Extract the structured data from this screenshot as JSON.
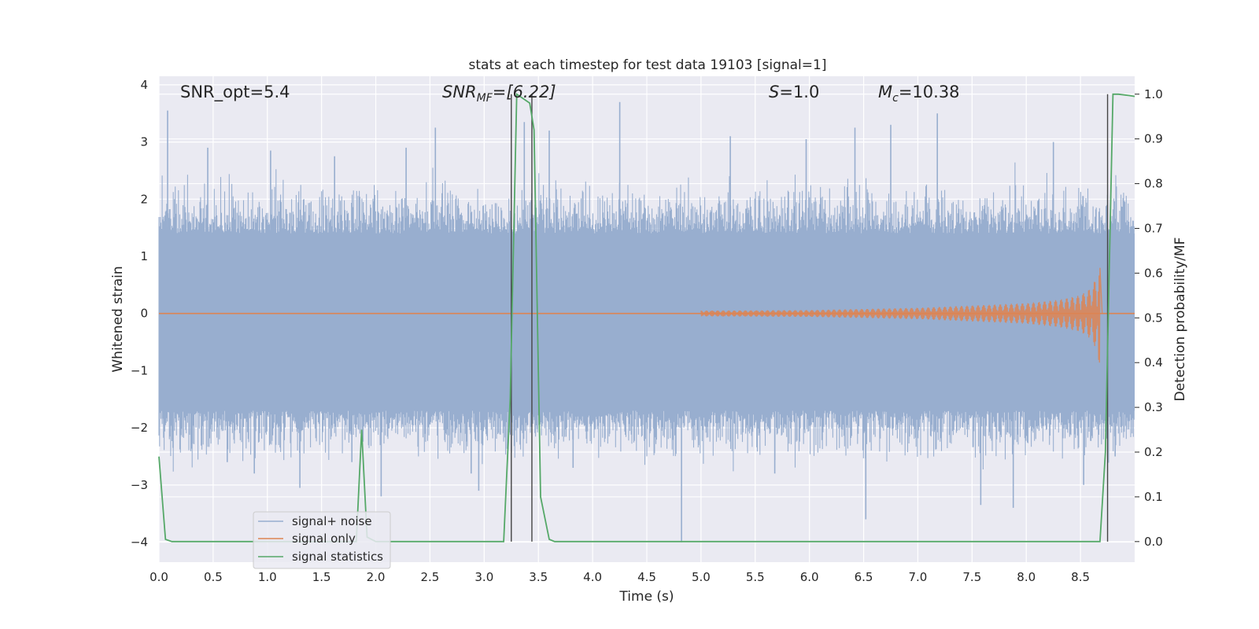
{
  "chart_data": {
    "type": "line",
    "title": "stats at each timestep for test data 19103 [signal=1]",
    "xlabel": "Time (s)",
    "ylabel": "Whitened strain",
    "y2label": "Detection probability/MF",
    "xlim": [
      0.0,
      9.0
    ],
    "ylim": [
      -4.35,
      4.15
    ],
    "y2lim": [
      -0.046,
      1.04
    ],
    "xticks": [
      0.0,
      0.5,
      1.0,
      1.5,
      2.0,
      2.5,
      3.0,
      3.5,
      4.0,
      4.5,
      5.0,
      5.5,
      6.0,
      6.5,
      7.0,
      7.5,
      8.0,
      8.5
    ],
    "xtick_labels": [
      "0.0",
      "0.5",
      "1.0",
      "1.5",
      "2.0",
      "2.5",
      "3.0",
      "3.5",
      "4.0",
      "4.5",
      "5.0",
      "5.5",
      "6.0",
      "6.5",
      "7.0",
      "7.5",
      "8.0",
      "8.5"
    ],
    "yticks": [
      4,
      3,
      2,
      1,
      0,
      -1,
      -2,
      -3,
      -4
    ],
    "ytick_labels": [
      "4",
      "3",
      "2",
      "1",
      "0",
      "−1",
      "−2",
      "−3",
      "−4"
    ],
    "y2ticks": [
      1.0,
      0.9,
      0.8,
      0.7,
      0.6,
      0.5,
      0.4,
      0.3,
      0.2,
      0.1,
      0.0
    ],
    "y2tick_labels": [
      "1.0",
      "0.9",
      "0.8",
      "0.7",
      "0.6",
      "0.5",
      "0.4",
      "0.3",
      "0.2",
      "0.1",
      "0.0"
    ],
    "grid": true,
    "legend_position": "lower-left",
    "annotations": {
      "snr_opt": "SNR_opt=5.4",
      "snr_mf_main": "SNR",
      "snr_mf_sub": "MF",
      "snr_mf_value": "=[6.22]",
      "s_symbol": "S",
      "s_value": "=1.0",
      "mc_main": "M",
      "mc_sub": "c",
      "mc_value": "=10.38"
    },
    "series": [
      {
        "name": "signal+ noise",
        "color": "#98aecf",
        "kind": "noise-band",
        "typical_range": [
          -1.7,
          1.4
        ],
        "extreme_peaks": [
          {
            "x": 0.08,
            "y": 3.55
          },
          {
            "x": 0.13,
            "y": -2.35
          },
          {
            "x": 0.45,
            "y": 2.9
          },
          {
            "x": 0.63,
            "y": -2.6
          },
          {
            "x": 0.88,
            "y": -2.8
          },
          {
            "x": 1.03,
            "y": 2.85
          },
          {
            "x": 1.3,
            "y": -3.05
          },
          {
            "x": 1.62,
            "y": 2.75
          },
          {
            "x": 1.78,
            "y": -2.6
          },
          {
            "x": 2.05,
            "y": -3.2
          },
          {
            "x": 2.28,
            "y": 2.9
          },
          {
            "x": 2.55,
            "y": 3.25
          },
          {
            "x": 2.88,
            "y": -2.8
          },
          {
            "x": 2.95,
            "y": -3.1
          },
          {
            "x": 3.37,
            "y": 3.35
          },
          {
            "x": 3.6,
            "y": 3.2
          },
          {
            "x": 3.82,
            "y": -2.7
          },
          {
            "x": 4.25,
            "y": 3.7
          },
          {
            "x": 4.82,
            "y": -4.0
          },
          {
            "x": 5.27,
            "y": 3.1
          },
          {
            "x": 5.68,
            "y": -2.8
          },
          {
            "x": 5.97,
            "y": 3.05
          },
          {
            "x": 6.42,
            "y": 3.25
          },
          {
            "x": 6.52,
            "y": -3.6
          },
          {
            "x": 6.75,
            "y": 3.3
          },
          {
            "x": 7.18,
            "y": 3.5
          },
          {
            "x": 7.58,
            "y": -3.35
          },
          {
            "x": 7.88,
            "y": -3.4
          },
          {
            "x": 8.25,
            "y": 3.0
          },
          {
            "x": 8.53,
            "y": -3.0
          },
          {
            "x": 8.82,
            "y": -2.5
          }
        ]
      },
      {
        "name": "signal only",
        "color": "#dd8452",
        "kind": "chirp",
        "start_x": 5.0,
        "merger_x": 8.68,
        "envelope_x": [
          5.0,
          6.0,
          7.0,
          7.5,
          8.0,
          8.3,
          8.5,
          8.6,
          8.65,
          8.68
        ],
        "envelope_y": [
          0.05,
          0.06,
          0.1,
          0.14,
          0.18,
          0.24,
          0.32,
          0.45,
          0.65,
          0.8
        ],
        "min_near_merger": -0.9
      },
      {
        "name": "signal statistics",
        "color": "#55a868",
        "axis": "right",
        "x": [
          0.0,
          0.06,
          0.12,
          1.82,
          1.87,
          1.92,
          2.0,
          2.07,
          3.18,
          3.24,
          3.3,
          3.42,
          3.46,
          3.52,
          3.6,
          3.65,
          8.68,
          8.73,
          8.8,
          8.85,
          8.95,
          9.0
        ],
        "y": [
          0.19,
          0.005,
          0.0,
          0.0,
          0.25,
          0.01,
          0.0,
          0.0,
          0.0,
          0.32,
          1.0,
          0.98,
          0.92,
          0.1,
          0.005,
          0.0,
          0.0,
          0.2,
          1.0,
          1.0,
          0.997,
          0.995
        ]
      }
    ],
    "markers": {
      "color": "#444444",
      "x": [
        3.25,
        3.44,
        8.75
      ]
    }
  }
}
